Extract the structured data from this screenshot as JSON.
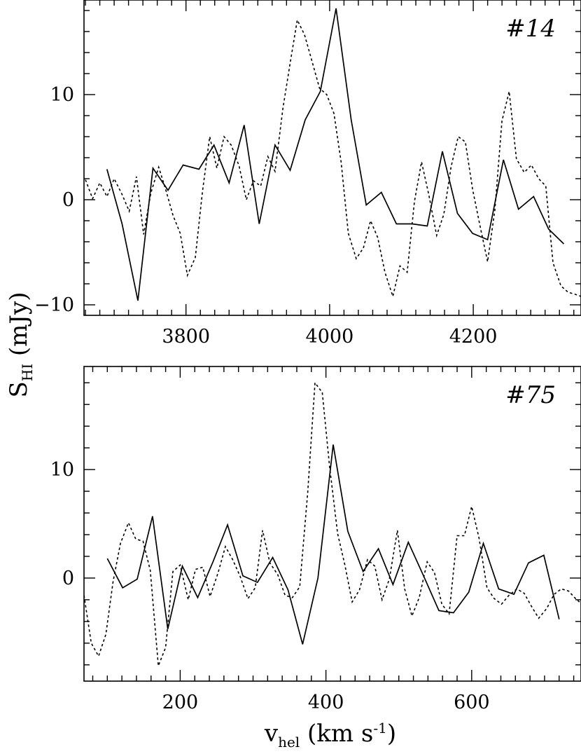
{
  "figure": {
    "ylabel_main": "S",
    "ylabel_sub": "HI",
    "ylabel_unit": "(mJy)",
    "xlabel_main": "v",
    "xlabel_sub": "hel",
    "xlabel_unit": "(km s",
    "xlabel_sup": "-1",
    "xlabel_close": ")"
  },
  "chart_data": [
    {
      "type": "line",
      "label": "#14",
      "xlim": [
        3658,
        4350
      ],
      "ylim": [
        -11,
        19
      ],
      "x_ticks": [
        3800,
        4000,
        4200
      ],
      "y_ticks": [
        -10,
        0,
        10
      ],
      "x_tick_labels": [
        "3800",
        "4000",
        "4200"
      ],
      "y_tick_labels": [
        "−10",
        "0",
        "10"
      ],
      "series": [
        {
          "style": "solid",
          "x": [
            3690,
            3711,
            3733,
            3754,
            3775,
            3796,
            3818,
            3839,
            3860,
            3881,
            3902,
            3924,
            3945,
            3966,
            3987,
            4009,
            4030,
            4051,
            4072,
            4093,
            4115,
            4136,
            4157,
            4178,
            4199,
            4220,
            4242,
            4263,
            4284,
            4305,
            4326
          ],
          "y": [
            2.9,
            -2.3,
            -9.6,
            3.0,
            0.9,
            3.3,
            2.9,
            5.2,
            1.6,
            7.1,
            -2.3,
            5.2,
            2.8,
            7.6,
            10.3,
            18.2,
            7.6,
            -0.5,
            0.7,
            -2.3,
            -2.3,
            -2.5,
            4.6,
            -1.3,
            -3.2,
            -3.8,
            3.8,
            -0.9,
            0.3,
            -2.8,
            -4.2
          ]
        },
        {
          "style": "dotted",
          "x": [
            3660,
            3670,
            3680,
            3690,
            3700,
            3711,
            3721,
            3731,
            3741,
            3751,
            3762,
            3772,
            3782,
            3792,
            3802,
            3813,
            3823,
            3833,
            3843,
            3853,
            3863,
            3874,
            3884,
            3894,
            3904,
            3914,
            3924,
            3935,
            3945,
            3955,
            3965,
            3975,
            3986,
            3996,
            4006,
            4016,
            4026,
            4037,
            4047,
            4057,
            4067,
            4077,
            4088,
            4098,
            4108,
            4118,
            4128,
            4138,
            4149,
            4159,
            4169,
            4179,
            4189,
            4199,
            4210,
            4220,
            4230,
            4240,
            4250,
            4260,
            4271,
            4281,
            4291,
            4301,
            4311,
            4322,
            4332,
            4342,
            4350
          ],
          "y": [
            1.9,
            0.1,
            1.6,
            0.3,
            2.0,
            0.5,
            -1.1,
            2.2,
            -3.3,
            0.6,
            3.1,
            0.9,
            -1.5,
            -3.2,
            -7.2,
            -5.5,
            0.8,
            6.0,
            3.0,
            6.0,
            5.2,
            3.2,
            0.0,
            1.8,
            1.3,
            4.1,
            2.7,
            8.7,
            13.0,
            17.1,
            15.7,
            13.3,
            10.6,
            10.0,
            8.2,
            3.6,
            -3.2,
            -5.6,
            -4.6,
            -2.0,
            -3.6,
            -6.9,
            -9.2,
            -6.3,
            -6.9,
            -0.2,
            3.6,
            0.5,
            -3.4,
            -1.4,
            3.1,
            6.0,
            5.5,
            1.0,
            -2.7,
            -5.9,
            -1.0,
            7.5,
            10.3,
            3.9,
            2.6,
            3.3,
            2.0,
            1.3,
            -6.0,
            -8.2,
            -8.8,
            -9.0,
            -9.2
          ]
        }
      ]
    },
    {
      "type": "line",
      "label": "#75",
      "xlim": [
        68,
        750
      ],
      "ylim": [
        -9.5,
        19.5
      ],
      "x_ticks": [
        200,
        400,
        600
      ],
      "y_ticks": [
        0,
        10
      ],
      "x_tick_labels": [
        "200",
        "400",
        "600"
      ],
      "y_tick_labels": [
        "0",
        "10"
      ],
      "series": [
        {
          "style": "solid",
          "x": [
            100,
            121,
            141,
            162,
            183,
            203,
            224,
            245,
            265,
            286,
            306,
            327,
            348,
            368,
            389,
            410,
            430,
            451,
            472,
            492,
            513,
            534,
            555,
            575,
            596,
            616,
            637,
            658,
            678,
            699,
            720
          ],
          "y": [
            1.8,
            -0.9,
            -0.1,
            5.7,
            -4.7,
            1.1,
            -1.8,
            1.5,
            4.9,
            0.2,
            -0.4,
            1.9,
            -1.1,
            -6.1,
            0.0,
            12.3,
            4.3,
            0.6,
            2.7,
            -0.6,
            3.3,
            0.2,
            -3.0,
            -3.2,
            -1.3,
            3.2,
            -1.0,
            -1.5,
            1.4,
            2.1,
            -3.8
          ]
        },
        {
          "style": "dotted",
          "x": [
            68,
            78,
            88,
            98,
            108,
            118,
            129,
            139,
            149,
            159,
            170,
            180,
            190,
            200,
            211,
            221,
            231,
            241,
            252,
            262,
            272,
            282,
            293,
            303,
            313,
            323,
            334,
            344,
            354,
            364,
            375,
            385,
            395,
            405,
            416,
            426,
            436,
            446,
            457,
            467,
            477,
            487,
            498,
            508,
            518,
            528,
            539,
            549,
            559,
            569,
            580,
            590,
            600,
            610,
            621,
            631,
            641,
            651,
            662,
            672,
            682,
            692,
            703,
            713,
            723,
            733,
            744,
            750
          ],
          "y": [
            -1.6,
            -6.0,
            -7.2,
            -5.2,
            -0.3,
            3.2,
            5.1,
            3.6,
            3.4,
            0.7,
            -8.1,
            -6.4,
            0.6,
            1.2,
            -2.0,
            0.8,
            1.0,
            -1.7,
            0.5,
            2.9,
            1.7,
            0.2,
            -1.9,
            -0.9,
            4.4,
            1.4,
            0.3,
            -1.6,
            -1.8,
            -0.8,
            7.9,
            18.0,
            17.1,
            10.3,
            4.1,
            1.2,
            -2.2,
            -1.1,
            1.7,
            1.1,
            -2.0,
            -0.1,
            4.4,
            -1.0,
            -3.5,
            -1.8,
            1.5,
            0.5,
            -2.4,
            -3.3,
            3.9,
            3.9,
            6.6,
            3.7,
            -0.9,
            -1.9,
            -2.4,
            -1.6,
            -1.0,
            -1.4,
            -2.6,
            -3.7,
            -2.8,
            -1.5,
            -1.0,
            -1.2,
            -2.0,
            -2.3
          ]
        }
      ]
    }
  ]
}
